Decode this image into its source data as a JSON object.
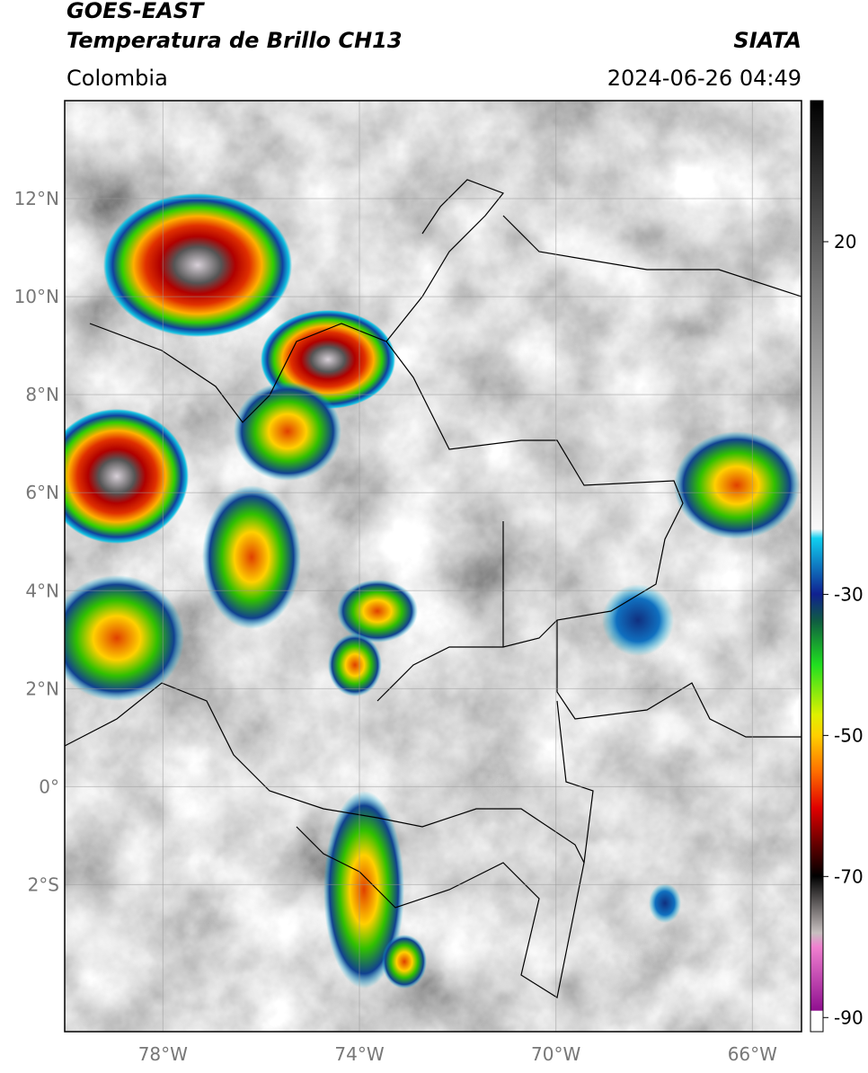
{
  "header": {
    "title": "GOES-EAST",
    "subtitle": "Temperatura de Brillo CH13",
    "region": "Colombia",
    "source": "SIATA",
    "datetime": "2024-06-26 04:49"
  },
  "map": {
    "lat_range": [
      -5,
      14
    ],
    "lon_range": [
      -80,
      -65
    ],
    "lat_ticks": [
      {
        "value": 12,
        "label": "12°N"
      },
      {
        "value": 10,
        "label": "10°N"
      },
      {
        "value": 8,
        "label": "8°N"
      },
      {
        "value": 6,
        "label": "6°N"
      },
      {
        "value": 4,
        "label": "4°N"
      },
      {
        "value": 2,
        "label": "2°N"
      },
      {
        "value": 0,
        "label": "0°"
      },
      {
        "value": -2,
        "label": "2°S"
      }
    ],
    "lon_ticks": [
      {
        "value": -78,
        "label": "78°W"
      },
      {
        "value": -74,
        "label": "74°W"
      },
      {
        "value": -70,
        "label": "70°W"
      },
      {
        "value": -66,
        "label": "66°W"
      }
    ]
  },
  "colorbar": {
    "range": [
      -92,
      40
    ],
    "ticks": [
      20,
      -30,
      -50,
      -70,
      -90
    ]
  }
}
